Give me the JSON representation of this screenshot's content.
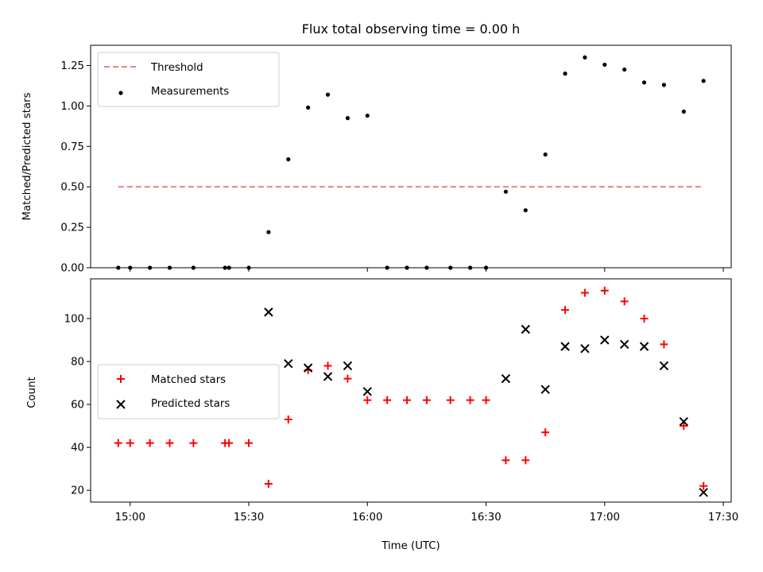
{
  "chart_data": [
    {
      "type": "scatter",
      "title": "Flux total observing time = 0.00 h",
      "xlabel": "",
      "ylabel": "Matched/Predicted stars",
      "ylim": [
        0,
        1.375
      ],
      "yticks": [
        "0.00",
        "0.25",
        "0.50",
        "0.75",
        "1.00",
        "1.25"
      ],
      "legend_position": "upper-left",
      "series": [
        {
          "name": "Threshold",
          "style": "dashed-line",
          "color": "#f08080",
          "x": [
            "14:57",
            "17:25"
          ],
          "y": [
            0.5,
            0.5
          ]
        },
        {
          "name": "Measurements",
          "style": "dot",
          "color": "#000000",
          "x": [
            "14:57",
            "15:00",
            "15:05",
            "15:10",
            "15:16",
            "15:24",
            "15:25",
            "15:30",
            "15:35",
            "15:40",
            "15:45",
            "15:50",
            "15:55",
            "16:00",
            "16:05",
            "16:10",
            "16:15",
            "16:21",
            "16:26",
            "16:30",
            "16:35",
            "16:40",
            "16:45",
            "16:50",
            "16:55",
            "17:00",
            "17:05",
            "17:10",
            "17:15",
            "17:20",
            "17:25"
          ],
          "y": [
            0,
            0,
            0,
            0,
            0,
            0,
            0,
            0,
            0.22,
            0.67,
            0.99,
            1.07,
            0.925,
            0.94,
            0,
            0,
            0,
            0,
            0,
            0,
            0.47,
            0.355,
            0.7,
            1.2,
            1.3,
            1.255,
            1.225,
            1.145,
            1.13,
            0.965,
            1.155
          ]
        }
      ]
    },
    {
      "type": "scatter",
      "title": "",
      "xlabel": "Time (UTC)",
      "ylabel": "Count",
      "ylim": [
        14.5,
        118.5
      ],
      "yticks": [
        "20",
        "40",
        "60",
        "80",
        "100"
      ],
      "xticks": [
        "15:00",
        "15:30",
        "16:00",
        "16:30",
        "17:00",
        "17:30"
      ],
      "xlim": [
        "14:50",
        "17:32"
      ],
      "legend_position": "center-left",
      "series": [
        {
          "name": "Matched stars",
          "marker": "plus",
          "color": "#ff0000",
          "x": [
            "14:57",
            "15:00",
            "15:05",
            "15:10",
            "15:16",
            "15:24",
            "15:25",
            "15:30",
            "15:35",
            "15:40",
            "15:45",
            "15:50",
            "15:55",
            "16:00",
            "16:05",
            "16:10",
            "16:15",
            "16:21",
            "16:26",
            "16:30",
            "16:35",
            "16:40",
            "16:45",
            "16:50",
            "16:55",
            "17:00",
            "17:05",
            "17:10",
            "17:15",
            "17:20",
            "17:25"
          ],
          "y": [
            42,
            42,
            42,
            42,
            42,
            42,
            42,
            42,
            23,
            53,
            76,
            78,
            72,
            62,
            62,
            62,
            62,
            62,
            62,
            62,
            34,
            34,
            47,
            104,
            112,
            113,
            108,
            100,
            88,
            50,
            22
          ]
        },
        {
          "name": "Predicted stars",
          "marker": "x",
          "color": "#000000",
          "x": [
            "15:35",
            "15:40",
            "15:45",
            "15:50",
            "15:55",
            "16:00",
            "16:35",
            "16:40",
            "16:45",
            "16:50",
            "16:55",
            "17:00",
            "17:05",
            "17:10",
            "17:15",
            "17:20",
            "17:25"
          ],
          "y": [
            103,
            79,
            77,
            73,
            78,
            66,
            72,
            95,
            67,
            87,
            86,
            90,
            88,
            87,
            78,
            52,
            19
          ]
        }
      ]
    }
  ]
}
